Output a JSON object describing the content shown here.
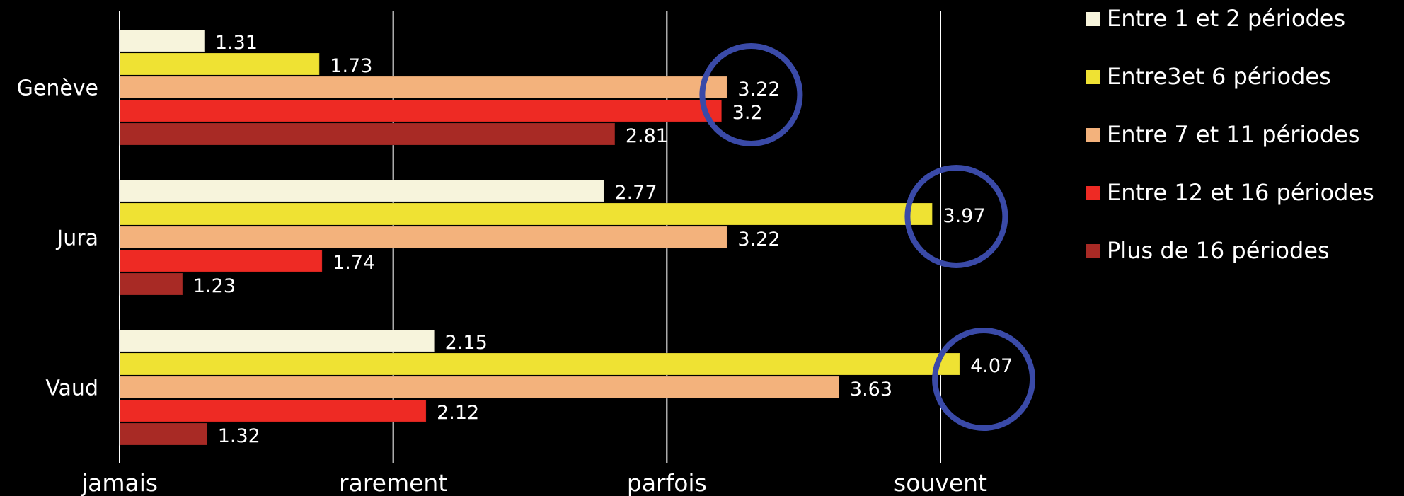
{
  "chart_data": {
    "type": "bar",
    "orientation": "horizontal",
    "title": "",
    "xlabel": "",
    "ylabel": "",
    "xlim": [
      1,
      4
    ],
    "grid": true,
    "legend_position": "right",
    "categories": [
      "Genève",
      "Jura",
      "Vaud"
    ],
    "x_ticks": [
      {
        "value": 1,
        "label": "jamais"
      },
      {
        "value": 2,
        "label": "rarement"
      },
      {
        "value": 3,
        "label": "parfois"
      },
      {
        "value": 4,
        "label": "souvent"
      }
    ],
    "series": [
      {
        "name": "Entre 1 et 2 périodes",
        "color": "#f7f4dc",
        "values": [
          1.31,
          2.77,
          2.15
        ]
      },
      {
        "name": "Entre3et 6 périodes",
        "color": "#efe233",
        "values": [
          1.73,
          3.97,
          4.07
        ]
      },
      {
        "name": "Entre 7 et 11 périodes",
        "color": "#f3b27c",
        "values": [
          3.22,
          3.22,
          3.63
        ]
      },
      {
        "name": "Entre 12 et 16 périodes",
        "color": "#ee2a24",
        "values": [
          3.2,
          1.74,
          2.12
        ]
      },
      {
        "name": "Plus de 16 périodes",
        "color": "#a82a25",
        "values": [
          2.81,
          1.23,
          1.32
        ]
      }
    ],
    "highlight_circles": [
      {
        "category": "Genève",
        "value": 3.22
      },
      {
        "category": "Jura",
        "value": 3.97
      },
      {
        "category": "Vaud",
        "value": 4.07
      }
    ],
    "highlight_color": "#3a4aa8"
  }
}
